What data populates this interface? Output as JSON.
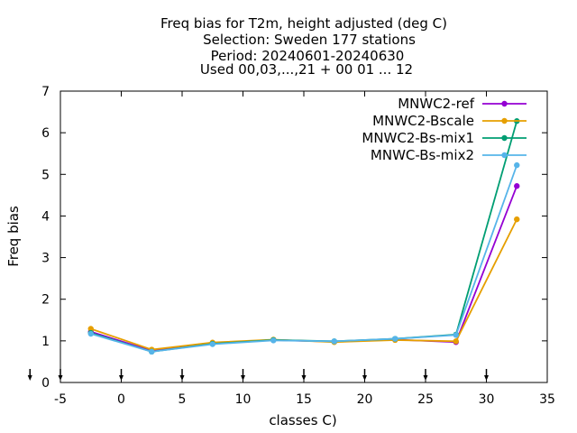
{
  "chart_data": {
    "type": "line",
    "title_lines": [
      "Freq bias  for T2m, height adjusted (deg C)",
      "Selection: Sweden     177 stations",
      "Period: 20240601-20240630",
      "Used 00,03,...,21 + 00 01 ... 12"
    ],
    "xlabel": "classes C)",
    "ylabel": "Freq bias",
    "xlim": [
      -5,
      35
    ],
    "ylim": [
      0,
      7
    ],
    "x_ticks": [
      -5,
      0,
      5,
      10,
      15,
      20,
      25,
      30,
      35
    ],
    "y_ticks": [
      0,
      1,
      2,
      3,
      4,
      5,
      6,
      7
    ],
    "grid": false,
    "legend_position": "top-right",
    "x": [
      -2.5,
      2.5,
      7.5,
      12.5,
      17.5,
      22.5,
      27.5,
      32.5
    ],
    "series": [
      {
        "name": "MNWC2-ref",
        "color": "#9400d3",
        "values": [
          1.22,
          0.76,
          0.94,
          1.02,
          0.98,
          1.03,
          0.97,
          4.72
        ]
      },
      {
        "name": "MNWC2-Bscale",
        "color": "#e69f00",
        "values": [
          1.29,
          0.79,
          0.96,
          1.03,
          0.97,
          1.02,
          0.99,
          3.92
        ]
      },
      {
        "name": "MNWC2-Bs-mix1",
        "color": "#009e73",
        "values": [
          1.19,
          0.74,
          0.93,
          1.02,
          0.99,
          1.05,
          1.15,
          6.28
        ]
      },
      {
        "name": "MNWC-Bs-mix2",
        "color": "#56b4e9",
        "values": [
          1.17,
          0.74,
          0.92,
          1.01,
          0.99,
          1.05,
          1.14,
          5.22
        ]
      }
    ]
  }
}
